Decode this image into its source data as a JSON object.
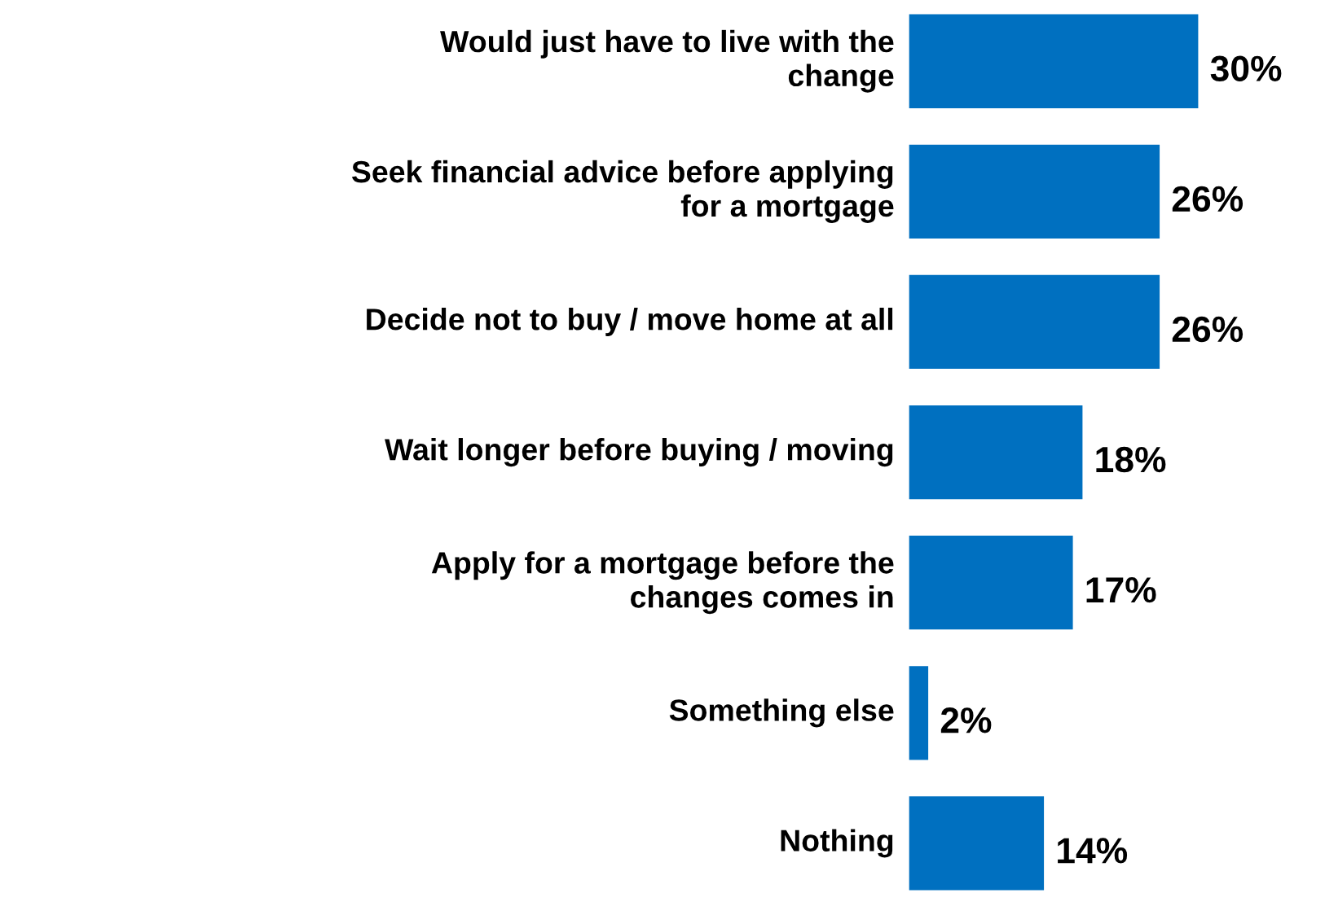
{
  "chart_data": {
    "type": "bar",
    "orientation": "horizontal",
    "categories": [
      "Would just have to live with the\nchange",
      "Seek financial advice before applying\nfor a mortgage",
      "Decide not to buy / move home at all",
      "Wait longer before buying / moving",
      "Apply for a mortgage before the\nchanges comes in",
      "Something else",
      "Nothing"
    ],
    "values": [
      30,
      26,
      26,
      18,
      17,
      2,
      14
    ],
    "value_labels": [
      "30%",
      "26%",
      "26%",
      "18%",
      "17%",
      "2%",
      "14%"
    ],
    "color": "#0070c0"
  }
}
